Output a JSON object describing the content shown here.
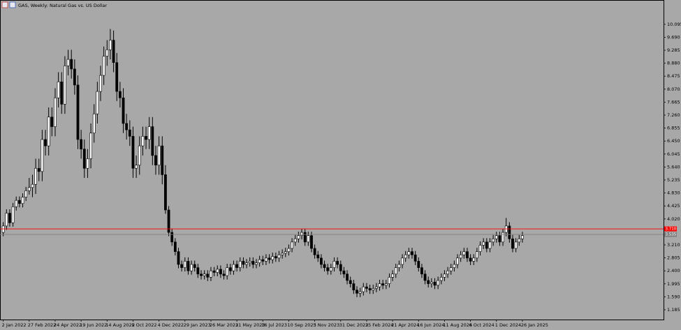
{
  "chart_data": {
    "type": "candlestick",
    "title": "GAS, Weekly:  Natural Gas vs. US Dollar",
    "open": [
      3.6,
      3.8,
      4.2,
      3.9,
      4.4,
      4.6,
      4.5,
      4.7,
      4.9,
      5.0,
      5.1,
      5.6,
      5.5,
      6.5,
      6.3,
      7.2,
      6.9,
      7.8,
      8.3,
      7.6,
      8.8,
      9.0,
      8.7,
      8.2,
      6.5,
      6.2,
      5.6,
      5.9,
      6.7,
      7.3,
      8.0,
      8.5,
      9.1,
      9.3,
      9.6,
      8.9,
      8.0,
      7.8,
      7.0,
      6.8,
      6.6,
      5.6,
      5.7,
      6.3,
      6.6,
      6.5,
      6.9,
      6.0,
      5.7,
      6.3,
      5.4,
      4.3,
      3.6,
      3.3,
      3.0,
      2.6,
      2.5,
      2.7,
      2.4,
      2.6,
      2.5,
      2.3,
      2.25,
      2.3,
      2.2,
      2.4,
      2.35,
      2.45,
      2.3,
      2.25,
      2.5,
      2.4,
      2.6,
      2.5,
      2.7,
      2.6,
      2.65,
      2.7,
      2.6,
      2.65,
      2.75,
      2.7,
      2.8,
      2.75,
      2.85,
      2.8,
      2.9,
      2.95,
      3.0,
      3.1,
      3.3,
      3.4,
      3.5,
      3.6,
      3.3,
      3.5,
      3.1,
      2.9,
      2.8,
      2.6,
      2.5,
      2.4,
      2.5,
      2.7,
      2.6,
      2.4,
      2.3,
      2.1,
      2.0,
      1.8,
      1.7,
      1.75,
      1.9,
      1.85,
      1.8,
      1.85,
      1.9,
      2.0,
      1.95,
      2.0,
      2.2,
      2.3,
      2.5,
      2.6,
      2.8,
      2.9,
      3.0,
      2.9,
      2.7,
      2.5,
      2.3,
      2.1,
      2.0,
      2.05,
      1.95,
      2.1,
      2.2,
      2.3,
      2.4,
      2.5,
      2.6,
      2.8,
      2.9,
      3.0,
      2.8,
      2.7,
      2.8,
      3.0,
      3.2,
      3.3,
      3.1,
      3.3,
      3.4,
      3.5,
      3.3,
      3.6,
      3.8,
      3.4,
      3.1,
      3.3,
      3.4
    ],
    "high": [
      3.92,
      4.32,
      4.32,
      4.52,
      4.72,
      4.72,
      4.82,
      5.02,
      5.3,
      5.4,
      5.9,
      5.9,
      6.8,
      6.8,
      7.5,
      7.5,
      8.1,
      8.6,
      8.6,
      9.1,
      9.3,
      9.3,
      9.0,
      8.5,
      6.8,
      6.5,
      6.2,
      7.0,
      7.6,
      8.3,
      8.8,
      9.4,
      9.6,
      9.95,
      9.9,
      9.2,
      8.3,
      8.1,
      7.3,
      7.1,
      6.9,
      6.0,
      6.6,
      6.9,
      6.9,
      7.2,
      7.2,
      6.3,
      6.6,
      6.6,
      5.7,
      4.42,
      3.72,
      3.42,
      3.12,
      2.72,
      2.82,
      2.82,
      2.72,
      2.72,
      2.62,
      2.42,
      2.42,
      2.42,
      2.52,
      2.52,
      2.57,
      2.57,
      2.42,
      2.62,
      2.62,
      2.72,
      2.72,
      2.82,
      2.82,
      2.77,
      2.82,
      2.82,
      2.77,
      2.87,
      2.87,
      2.92,
      2.92,
      2.97,
      2.97,
      3.02,
      3.07,
      3.12,
      3.22,
      3.42,
      3.52,
      3.62,
      3.72,
      3.72,
      3.62,
      3.62,
      3.22,
      3.02,
      2.92,
      2.72,
      2.62,
      2.62,
      2.82,
      2.82,
      2.72,
      2.52,
      2.42,
      2.22,
      2.12,
      1.92,
      1.87,
      2.02,
      2.02,
      1.97,
      1.97,
      2.02,
      2.12,
      2.12,
      2.12,
      2.32,
      2.42,
      2.62,
      2.72,
      2.92,
      3.02,
      3.12,
      3.12,
      3.02,
      2.82,
      2.62,
      2.42,
      2.22,
      2.17,
      2.17,
      2.22,
      2.32,
      2.42,
      2.52,
      2.62,
      2.72,
      2.92,
      3.02,
      3.12,
      3.12,
      2.92,
      2.92,
      3.12,
      3.32,
      3.42,
      3.42,
      3.42,
      3.52,
      3.62,
      3.62,
      3.72,
      4.05,
      3.92,
      3.52,
      3.42,
      3.52,
      3.62
    ],
    "low": [
      3.48,
      3.68,
      3.78,
      3.78,
      4.28,
      4.38,
      4.38,
      4.58,
      4.78,
      4.7,
      4.8,
      5.2,
      5.2,
      6.0,
      6.0,
      6.6,
      6.6,
      7.5,
      7.3,
      7.3,
      8.5,
      8.4,
      7.9,
      6.2,
      5.9,
      5.3,
      5.3,
      5.6,
      6.4,
      7.0,
      7.7,
      8.2,
      8.8,
      9.0,
      8.6,
      7.7,
      7.5,
      6.7,
      6.5,
      6.3,
      5.3,
      5.3,
      5.4,
      6.0,
      6.2,
      6.2,
      5.7,
      5.4,
      5.4,
      5.1,
      4.18,
      3.48,
      3.18,
      2.88,
      2.48,
      2.38,
      2.38,
      2.28,
      2.28,
      2.38,
      2.18,
      2.13,
      2.13,
      2.08,
      2.08,
      2.23,
      2.23,
      2.18,
      2.13,
      2.13,
      2.28,
      2.28,
      2.38,
      2.38,
      2.48,
      2.48,
      2.53,
      2.48,
      2.48,
      2.53,
      2.58,
      2.58,
      2.63,
      2.63,
      2.68,
      2.68,
      2.78,
      2.83,
      2.88,
      2.98,
      3.18,
      3.28,
      3.38,
      3.18,
      3.18,
      2.98,
      2.78,
      2.68,
      2.48,
      2.38,
      2.28,
      2.28,
      2.38,
      2.48,
      2.28,
      2.18,
      1.98,
      1.88,
      1.68,
      1.58,
      1.58,
      1.63,
      1.73,
      1.68,
      1.68,
      1.73,
      1.78,
      1.83,
      1.83,
      1.88,
      2.08,
      2.18,
      2.38,
      2.48,
      2.68,
      2.78,
      2.78,
      2.58,
      2.38,
      2.18,
      1.98,
      1.88,
      1.88,
      1.83,
      1.83,
      1.98,
      2.08,
      2.18,
      2.28,
      2.38,
      2.48,
      2.68,
      2.78,
      2.68,
      2.58,
      2.58,
      2.68,
      2.88,
      3.08,
      2.98,
      2.98,
      3.18,
      3.28,
      3.18,
      3.18,
      3.48,
      3.28,
      2.98,
      2.98,
      3.18,
      3.28
    ],
    "close": [
      3.8,
      4.2,
      3.9,
      4.4,
      4.6,
      4.5,
      4.7,
      4.9,
      5.0,
      5.1,
      5.6,
      5.5,
      6.5,
      6.3,
      7.2,
      6.9,
      7.8,
      8.3,
      7.6,
      8.8,
      9.0,
      8.7,
      8.2,
      6.5,
      6.2,
      5.6,
      5.9,
      6.7,
      7.3,
      8.0,
      8.5,
      9.1,
      9.3,
      9.6,
      8.9,
      8.0,
      7.8,
      7.0,
      6.8,
      6.6,
      5.6,
      5.7,
      6.3,
      6.6,
      6.5,
      6.9,
      6.0,
      5.7,
      6.3,
      5.4,
      4.3,
      3.6,
      3.3,
      3.0,
      2.6,
      2.5,
      2.7,
      2.4,
      2.6,
      2.5,
      2.3,
      2.25,
      2.3,
      2.2,
      2.4,
      2.35,
      2.45,
      2.3,
      2.25,
      2.5,
      2.4,
      2.6,
      2.5,
      2.7,
      2.6,
      2.65,
      2.7,
      2.6,
      2.65,
      2.75,
      2.7,
      2.8,
      2.75,
      2.85,
      2.8,
      2.9,
      2.95,
      3.0,
      3.1,
      3.3,
      3.4,
      3.5,
      3.6,
      3.3,
      3.5,
      3.1,
      2.9,
      2.8,
      2.6,
      2.5,
      2.4,
      2.5,
      2.7,
      2.6,
      2.4,
      2.3,
      2.1,
      2.0,
      1.8,
      1.7,
      1.75,
      1.9,
      1.85,
      1.8,
      1.85,
      1.9,
      2.0,
      1.95,
      2.0,
      2.2,
      2.3,
      2.5,
      2.6,
      2.8,
      2.9,
      3.0,
      2.9,
      2.7,
      2.5,
      2.3,
      2.1,
      2.0,
      2.05,
      1.95,
      2.1,
      2.2,
      2.3,
      2.4,
      2.5,
      2.6,
      2.8,
      2.9,
      3.0,
      2.8,
      2.7,
      2.8,
      3.0,
      3.2,
      3.3,
      3.1,
      3.3,
      3.4,
      3.5,
      3.3,
      3.6,
      3.8,
      3.4,
      3.1,
      3.3,
      3.4,
      3.5
    ],
    "up_color": "#ffffff",
    "down_color": "#000000",
    "xlim": [
      -1,
      203.5
    ],
    "xticks": [
      {
        "value": 0,
        "label": "2 Jan 2022"
      },
      {
        "value": 8,
        "label": "27 Feb 2022"
      },
      {
        "value": 16,
        "label": "24 Apr 2022"
      },
      {
        "value": 24,
        "label": "19 Jun 2022"
      },
      {
        "value": 32,
        "label": "14 Aug 2022"
      },
      {
        "value": 40,
        "label": "9 Oct 2022"
      },
      {
        "value": 48,
        "label": "4 Dec 2022"
      },
      {
        "value": 56,
        "label": "29 Jan 2023"
      },
      {
        "value": 64,
        "label": "26 Mar 2023"
      },
      {
        "value": 72,
        "label": "21 May 2023"
      },
      {
        "value": 80,
        "label": "16 Jul 2023"
      },
      {
        "value": 88,
        "label": "10 Sep 2023"
      },
      {
        "value": 96,
        "label": "5 Nov 2023"
      },
      {
        "value": 104,
        "label": "31 Dec 2023"
      },
      {
        "value": 112,
        "label": "25 Feb 2024"
      },
      {
        "value": 120,
        "label": "21 Apr 2024"
      },
      {
        "value": 128,
        "label": "16 Jun 2024"
      },
      {
        "value": 136,
        "label": "11 Aug 2024"
      },
      {
        "value": 144,
        "label": "6 Oct 2024"
      },
      {
        "value": 152,
        "label": "1 Dec 2024"
      },
      {
        "value": 160,
        "label": "26 Jan 2025"
      }
    ],
    "ylim": [
      0.88,
      10.81
    ],
    "yticks": [
      1.185,
      {
        "value": 1.59,
        "label": "1.590"
      },
      1.995,
      {
        "value": 2.4,
        "label": "2.400"
      },
      2.805,
      {
        "value": 3.21,
        "label": "3.210"
      },
      {
        "value": 4.02,
        "label": "4.020"
      },
      4.425,
      {
        "value": 4.83,
        "label": "4.830"
      },
      5.235,
      {
        "value": 5.64,
        "label": "5.640"
      },
      6.045,
      {
        "value": 6.45,
        "label": "6.450"
      },
      6.855,
      {
        "value": 7.26,
        "label": "7.260"
      },
      7.665,
      {
        "value": 8.07,
        "label": "8.070"
      },
      8.475,
      {
        "value": 8.88,
        "label": "8.880"
      },
      9.285,
      {
        "value": 9.69,
        "label": "9.690"
      },
      10.095
    ],
    "price_lines": [
      {
        "value": 3.71,
        "label": "3.710",
        "color": "#ff0000"
      },
      {
        "value": 3.535,
        "label": "3.535",
        "color": "#7f7f7f"
      }
    ]
  }
}
